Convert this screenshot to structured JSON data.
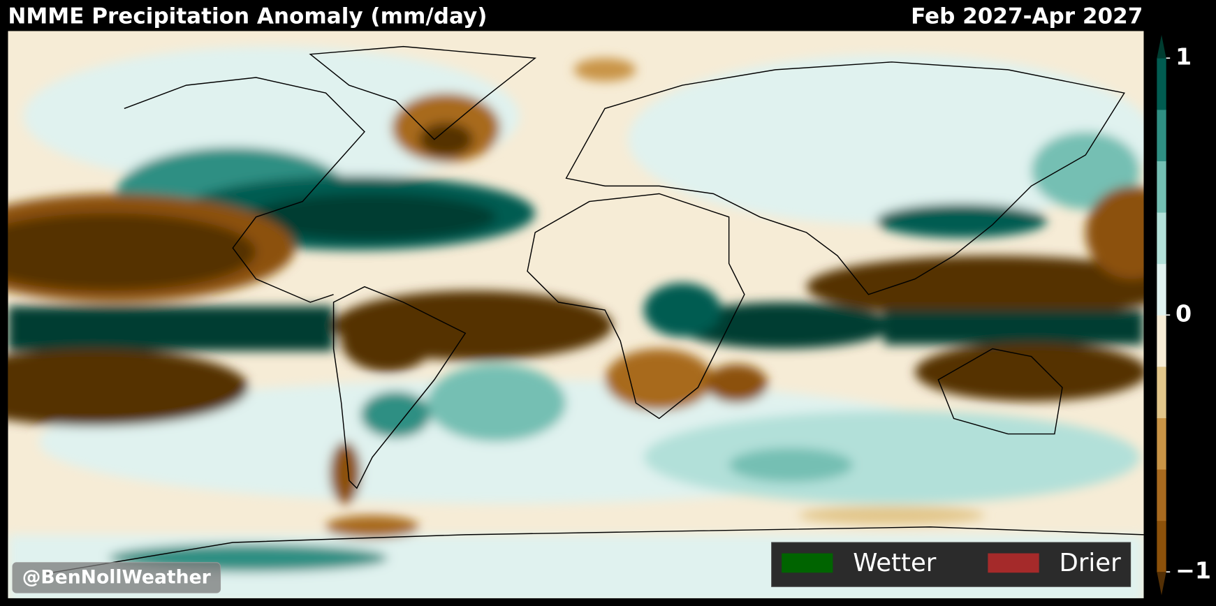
{
  "header": {
    "title": "NMME Precipitation Anomaly (mm/day)",
    "period": "Feb 2027-Apr 2027"
  },
  "colorbar": {
    "lim": [
      -1,
      1
    ],
    "ticks": [
      {
        "value": 1,
        "label": "1"
      },
      0,
      {
        "value": -1,
        "label": "−1"
      }
    ],
    "colors": [
      "#8c510a",
      "#a86a1f",
      "#c99446",
      "#e2c68a",
      "#f6ecd6",
      "#e0f2ef",
      "#b2e0d9",
      "#74bfb3",
      "#2f8f83",
      "#015c51"
    ],
    "under_color": "#543005",
    "over_color": "#003c30"
  },
  "legend": [
    {
      "label": "Wetter",
      "color": "#006400"
    },
    {
      "label": "Drier",
      "color": "#a52a2a"
    }
  ],
  "watermark": "@BenNollWeather"
}
